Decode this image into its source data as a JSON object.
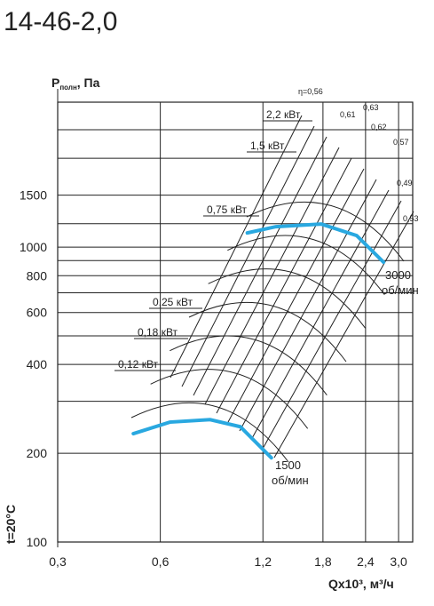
{
  "chart_data": {
    "type": "line",
    "title": "14-46-2,0",
    "y_label": {
      "symbol": "P",
      "subscript": "полн",
      "unit": ", Па"
    },
    "x_label": "Qx10³, м³/ч",
    "condition": "t=20°C",
    "log_x": true,
    "log_y": true,
    "grid": true,
    "xlim": [
      0.3,
      3.3
    ],
    "ylim": [
      100,
      3100
    ],
    "xticks": [
      {
        "value": 0.3,
        "label": "0,3"
      },
      {
        "value": 0.6,
        "label": "0,6"
      },
      {
        "value": 1.2,
        "label": "1,2"
      },
      {
        "value": 1.8,
        "label": "1,8"
      },
      {
        "value": 2.4,
        "label": "2,4"
      },
      {
        "value": 3.0,
        "label": "3,0"
      }
    ],
    "yticks": [
      100,
      200,
      400,
      600,
      800,
      1000,
      1500
    ],
    "ygrid": [
      300,
      500,
      700,
      900,
      1200,
      2000,
      2500
    ],
    "series": [
      {
        "color": "#29a8e0",
        "label_lines": [
          "3000",
          "об/мин"
        ],
        "x": [
          1.08,
          1.31,
          1.78,
          2.26,
          2.71
        ],
        "values": [
          1117,
          1173,
          1197,
          1094,
          889
        ]
      },
      {
        "color": "#29a8e0",
        "label_lines": [
          "1500",
          "об/мин"
        ],
        "x": [
          0.5,
          0.64,
          0.84,
          1.03,
          1.27
        ],
        "values": [
          233,
          255,
          260,
          246,
          193
        ]
      }
    ],
    "power_labels": [
      "2,2 кВт",
      "1,5 кВт",
      "0,75 кВт",
      "0,25 кВт",
      "0,18 кВт",
      "0,12 кВт"
    ],
    "efficiency_labels": [
      "η=0,56",
      "0,61",
      "0,63",
      "0,62",
      "0,57",
      "0,49",
      "0,53"
    ]
  }
}
